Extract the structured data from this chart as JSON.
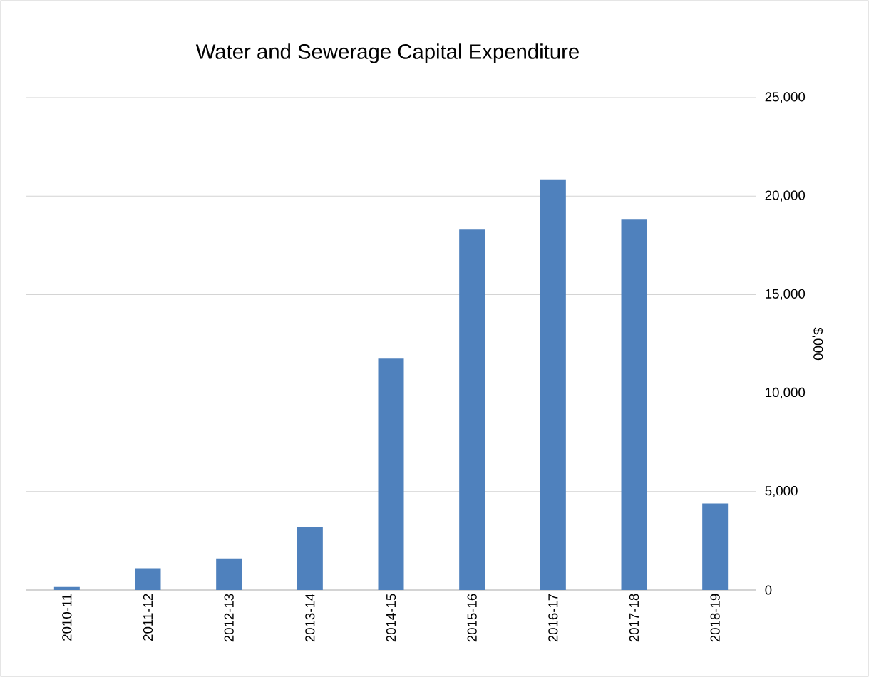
{
  "chart_data": {
    "type": "bar",
    "title": "Water and Sewerage Capital Expenditure",
    "ylabel": "$,000",
    "categories": [
      "2010-11",
      "2011-12",
      "2012-13",
      "2013-14",
      "2014-15",
      "2015-16",
      "2016-17",
      "2017-18",
      "2018-19"
    ],
    "values": [
      150,
      1100,
      1600,
      3200,
      11750,
      18300,
      20850,
      18800,
      4400
    ],
    "color": "#4f81bd",
    "ylim": [
      0,
      25000
    ],
    "yticks": [
      {
        "value": 0,
        "label": "0"
      },
      {
        "value": 5000,
        "label": "5,000"
      },
      {
        "value": 10000,
        "label": "10,000"
      },
      {
        "value": 15000,
        "label": "15,000"
      },
      {
        "value": 20000,
        "label": "20,000"
      },
      {
        "value": 25000,
        "label": "25,000"
      }
    ],
    "grid": true
  }
}
